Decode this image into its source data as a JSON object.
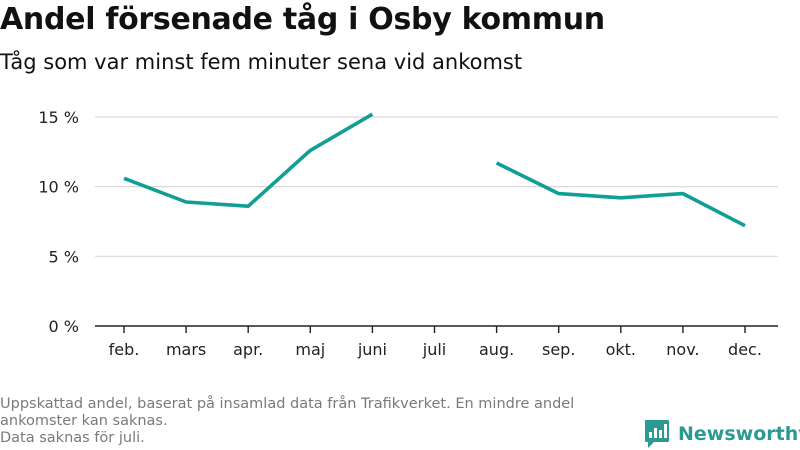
{
  "header": {
    "title": "Andel försenade tåg i Osby kommun",
    "subtitle": "Tåg som var minst fem minuter sena vid ankomst"
  },
  "footnote": {
    "line1": "Uppskattad andel, baserat på insamlad data från Trafikverket. En mindre andel ankomster kan saknas.",
    "line2": "Data saknas för juli."
  },
  "brand": {
    "name": "Newsworthy",
    "color": "#2a9a92"
  },
  "chart_data": {
    "type": "line",
    "title": "Andel försenade tåg i Osby kommun",
    "subtitle": "Tåg som var minst fem minuter sena vid ankomst",
    "categories": [
      "feb.",
      "mars",
      "apr.",
      "maj",
      "juni",
      "juli",
      "aug.",
      "sep.",
      "okt.",
      "nov.",
      "dec."
    ],
    "series": [
      {
        "values": [
          10.6,
          8.9,
          8.6,
          12.6,
          15.2,
          null,
          11.7,
          9.5,
          9.2,
          9.5,
          7.2
        ],
        "color": "#119e96"
      }
    ],
    "yticks": [
      0,
      5,
      10,
      15
    ],
    "ytick_labels": [
      "0 %",
      "5 %",
      "10 %",
      "15 %"
    ],
    "ylim": [
      0,
      15.5
    ],
    "grid": true,
    "legend": "none"
  }
}
